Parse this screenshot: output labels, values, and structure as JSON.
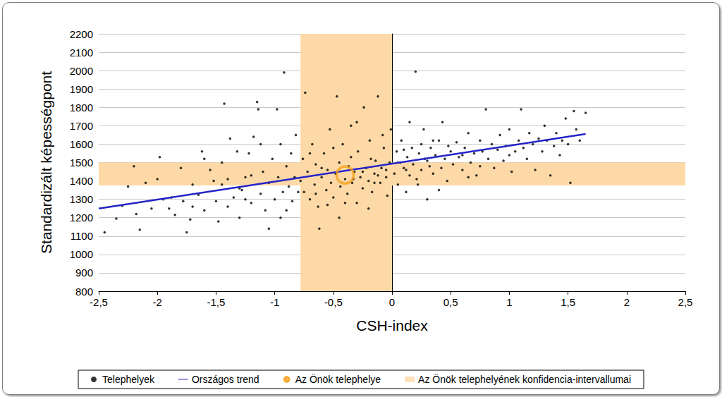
{
  "chart_data": {
    "type": "scatter",
    "x_label": "CSH-index",
    "y_label": "Standardizált képességpont",
    "xlim": [
      -2.5,
      2.5
    ],
    "ylim": [
      800,
      2200
    ],
    "xticks": [
      {
        "value": -2.5,
        "label": "-2,5"
      },
      -2,
      {
        "value": -1.5,
        "label": "-1,5"
      },
      -1,
      {
        "value": -0.5,
        "label": "-0,5"
      },
      0,
      {
        "value": 0.5,
        "label": "0,5"
      },
      1,
      {
        "value": 1.5,
        "label": "1,5"
      },
      2,
      {
        "value": 2.5,
        "label": "2,5"
      }
    ],
    "yticks": [
      800,
      900,
      1000,
      1100,
      1200,
      1300,
      1400,
      1500,
      1600,
      1700,
      1800,
      1900,
      2000,
      2100,
      2200
    ],
    "grid": true,
    "legend": "bottom",
    "series": [
      {
        "name": "Telephelyek",
        "type": "scatter",
        "color": "#000000",
        "marker": "circle",
        "x": [
          -2.45,
          -2.35,
          -2.3,
          -2.2,
          -2.18,
          -2.15,
          -2.1,
          -2.05,
          -2.0,
          -1.98,
          -1.95,
          -1.9,
          -1.85,
          -1.8,
          -1.78,
          -1.75,
          -1.72,
          -1.7,
          -1.65,
          -1.62,
          -1.6,
          -1.55,
          -1.5,
          -1.48,
          -1.45,
          -1.43,
          -1.4,
          -1.38,
          -1.35,
          -1.3,
          -1.28,
          -1.25,
          -1.22,
          -1.2,
          -1.18,
          -1.15,
          -1.14,
          -1.12,
          -1.1,
          -1.08,
          -1.05,
          -1.02,
          -1.0,
          -0.98,
          -0.97,
          -0.95,
          -0.93,
          -0.92,
          -0.9,
          -0.88,
          -0.86,
          -0.85,
          -0.83,
          -0.82,
          -0.8,
          -1.6,
          -1.32,
          -1.52,
          -1.4,
          -1.25,
          -1.05,
          -0.95,
          -1.7,
          -1.88,
          -2.25,
          -1.12,
          -1.2,
          -0.9,
          -1.45,
          -1.3,
          -0.78,
          -0.76,
          -0.75,
          -0.74,
          -0.72,
          -0.7,
          -0.68,
          -0.66,
          -0.65,
          -0.63,
          -0.6,
          -0.58,
          -0.56,
          -0.55,
          -0.53,
          -0.52,
          -0.5,
          -0.48,
          -0.47,
          -0.45,
          -0.44,
          -0.42,
          -0.4,
          -0.38,
          -0.37,
          -0.35,
          -0.34,
          -0.32,
          -0.3,
          -0.29,
          -0.27,
          -0.25,
          -0.24,
          -0.22,
          -0.2,
          -0.19,
          -0.17,
          -0.15,
          -0.14,
          -0.12,
          -0.1,
          -0.09,
          -0.07,
          -0.05,
          -0.04,
          -0.02,
          -0.01,
          -0.62,
          -0.45,
          -0.3,
          -0.2,
          -0.7,
          -0.55,
          -0.35,
          -0.15,
          -0.08,
          -0.4,
          -0.6,
          -0.25,
          -0.12,
          -0.5,
          -0.33,
          -0.18,
          -0.05,
          -0.65,
          0.02,
          0.04,
          0.05,
          0.07,
          0.08,
          0.1,
          0.12,
          0.13,
          0.15,
          0.17,
          0.18,
          0.2,
          0.21,
          0.23,
          0.25,
          0.27,
          0.28,
          0.3,
          0.32,
          0.33,
          0.35,
          0.37,
          0.4,
          0.42,
          0.43,
          0.45,
          0.47,
          0.5,
          0.52,
          0.55,
          0.57,
          0.6,
          0.62,
          0.65,
          0.67,
          0.7,
          0.72,
          0.75,
          0.77,
          0.8,
          0.82,
          0.85,
          0.87,
          0.9,
          0.92,
          0.95,
          0.97,
          1.0,
          1.02,
          1.05,
          1.08,
          1.1,
          1.12,
          1.15,
          1.17,
          1.2,
          1.22,
          1.25,
          1.28,
          1.3,
          1.32,
          1.35,
          1.38,
          1.4,
          1.43,
          1.45,
          1.48,
          1.5,
          1.52,
          1.55,
          1.57,
          1.6,
          1.65,
          0.1,
          0.22,
          0.35,
          0.48,
          0.6,
          0.15,
          0.3,
          0.05,
          0.4,
          0.75,
          1.0,
          0.65,
          0.25,
          0.12
        ],
        "values": [
          1120,
          1195,
          1265,
          1480,
          1220,
          1135,
          1390,
          1250,
          1410,
          1530,
          1300,
          1250,
          1215,
          1470,
          1290,
          1120,
          1190,
          1380,
          1325,
          1560,
          1240,
          1460,
          1290,
          1180,
          1380,
          1820,
          1260,
          1630,
          1310,
          1200,
          1350,
          1420,
          1550,
          1280,
          1640,
          1830,
          1790,
          1330,
          1450,
          1240,
          1390,
          1520,
          1300,
          1790,
          1420,
          1600,
          1340,
          1990,
          1480,
          1370,
          1550,
          1290,
          1420,
          1650,
          1340,
          1520,
          1560,
          1400,
          1410,
          1300,
          1140,
          1200,
          1260,
          1310,
          1370,
          1600,
          1430,
          1240,
          1500,
          1360,
          1400,
          1520,
          1340,
          1880,
          1450,
          1300,
          1600,
          1380,
          1490,
          1260,
          1420,
          1550,
          1350,
          1460,
          1680,
          1390,
          1310,
          1440,
          1860,
          1500,
          1370,
          1600,
          1410,
          1330,
          1480,
          1700,
          1390,
          1450,
          1280,
          1560,
          1420,
          1360,
          1800,
          1470,
          1400,
          1620,
          1340,
          1440,
          1510,
          1860,
          1390,
          1470,
          1580,
          1420,
          1320,
          1500,
          1680,
          1140,
          1200,
          1720,
          1250,
          1550,
          1270,
          1530,
          1390,
          1650,
          1280,
          1470,
          1450,
          1430,
          1580,
          1410,
          1520,
          1460,
          1330,
          1440,
          1560,
          1380,
          1500,
          1620,
          1470,
          1340,
          1530,
          1430,
          1580,
          1490,
          1995,
          1410,
          1550,
          1460,
          1680,
          1520,
          1300,
          1480,
          1580,
          1440,
          1540,
          1620,
          1470,
          1720,
          1520,
          1400,
          1560,
          1490,
          1610,
          1530,
          1460,
          1580,
          1660,
          1500,
          1550,
          1430,
          1620,
          1560,
          1790,
          1520,
          1600,
          1470,
          1570,
          1650,
          1510,
          1590,
          1680,
          1450,
          1560,
          1620,
          1790,
          1580,
          1520,
          1660,
          1600,
          1460,
          1630,
          1560,
          1700,
          1620,
          1430,
          1590,
          1660,
          1540,
          1620,
          1740,
          1600,
          1390,
          1780,
          1680,
          1620,
          1770,
          1570,
          1380,
          1620,
          1590,
          1540,
          1720,
          1510,
          1500,
          1350,
          1480,
          1540,
          1420,
          1600,
          1460
        ]
      },
      {
        "name": "Országos trend",
        "type": "line",
        "color": "#2323c8",
        "line_style": "solid",
        "x": [
          -2.5,
          1.65
        ],
        "values": [
          1250,
          1655
        ]
      },
      {
        "name": "Az Önök telephelye",
        "type": "scatter",
        "color": "#f5a01a",
        "marker": "ring",
        "x": [
          -0.4
        ],
        "values": [
          1432
        ]
      }
    ],
    "confidence_interval": {
      "name": "Az Önök telephelyének konfidencia-intervallumai",
      "color": "#fcd9a6",
      "x": [
        -0.78,
        0
      ],
      "y": [
        1375,
        1500
      ]
    }
  }
}
